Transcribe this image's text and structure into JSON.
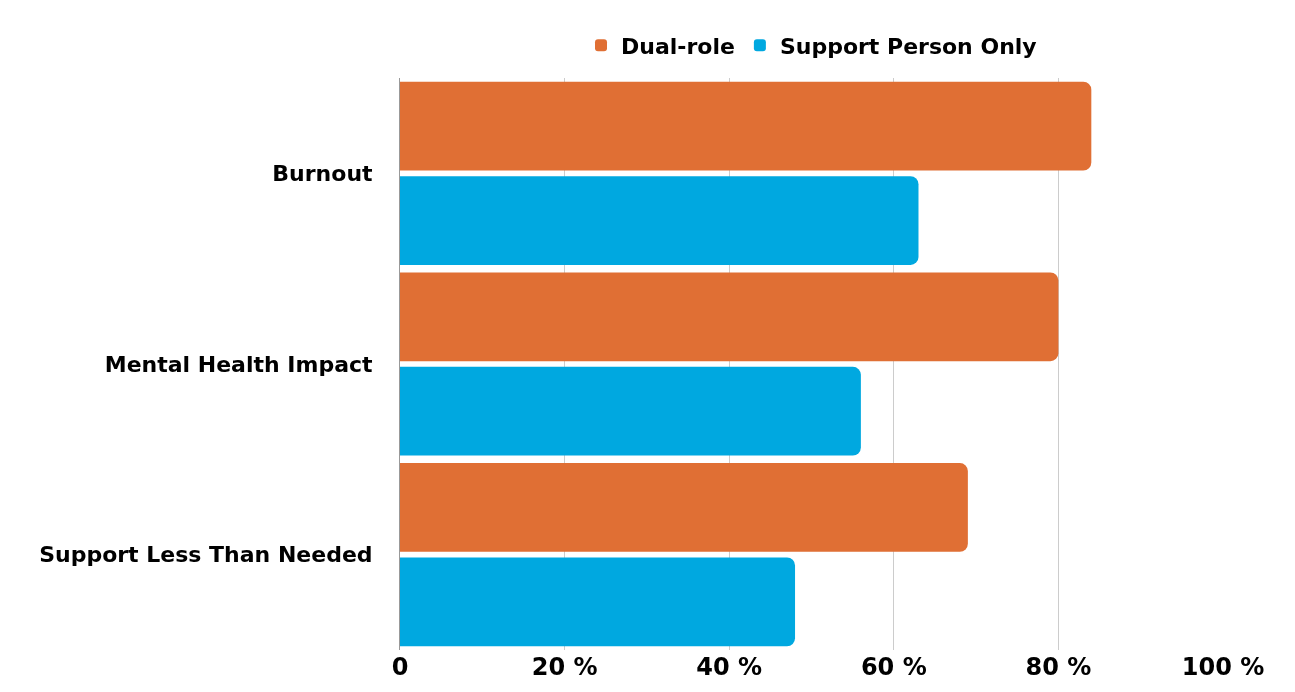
{
  "chart_data": {
    "type": "bar",
    "orientation": "horizontal",
    "categories": [
      "Burnout",
      "Mental Health Impact",
      "Support Less Than Needed"
    ],
    "series": [
      {
        "name": "Dual-role",
        "color": "#e06f34",
        "values": [
          84,
          80,
          69
        ]
      },
      {
        "name": "Support Person Only",
        "color": "#00a8e0",
        "values": [
          63,
          56,
          48
        ]
      }
    ],
    "xlim": [
      0,
      100
    ],
    "xticks": [
      0,
      {
        "value": 20,
        "label": "20 %"
      },
      {
        "value": 40,
        "label": "40 %"
      },
      {
        "value": 60,
        "label": "60 %"
      },
      {
        "value": 80,
        "label": "80 %"
      },
      {
        "value": 100,
        "label": "100 %"
      }
    ],
    "grid": "x",
    "legend": "top"
  }
}
